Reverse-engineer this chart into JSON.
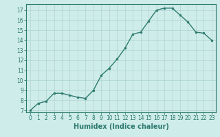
{
  "x": [
    0,
    1,
    2,
    3,
    4,
    5,
    6,
    7,
    8,
    9,
    10,
    11,
    12,
    13,
    14,
    15,
    16,
    17,
    18,
    19,
    20,
    21,
    22,
    23
  ],
  "y": [
    7.0,
    7.7,
    7.9,
    8.7,
    8.7,
    8.5,
    8.3,
    8.2,
    9.0,
    10.5,
    11.2,
    12.1,
    13.2,
    14.6,
    14.8,
    15.9,
    17.0,
    17.2,
    17.2,
    16.5,
    15.8,
    14.8,
    14.7,
    14.0
  ],
  "line_color": "#2d7a6e",
  "marker": "o",
  "marker_size": 2,
  "bg_color": "#ceecea",
  "grid_color": "#aed4d0",
  "xlabel": "Humidex (Indice chaleur)",
  "xlim": [
    -0.5,
    23.5
  ],
  "ylim": [
    6.8,
    17.6
  ],
  "yticks": [
    7,
    8,
    9,
    10,
    11,
    12,
    13,
    14,
    15,
    16,
    17
  ],
  "xticks": [
    0,
    1,
    2,
    3,
    4,
    5,
    6,
    7,
    8,
    9,
    10,
    11,
    12,
    13,
    14,
    15,
    16,
    17,
    18,
    19,
    20,
    21,
    22,
    23
  ],
  "tick_fontsize": 5.5,
  "xlabel_fontsize": 7,
  "line_width": 1.0,
  "color": "#2d7a6e"
}
